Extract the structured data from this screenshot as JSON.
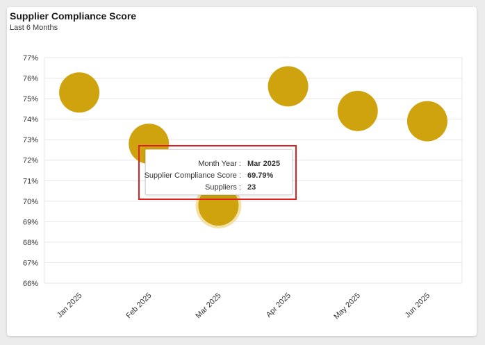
{
  "header": {
    "title": "Supplier Compliance Score",
    "subtitle": "Last 6 Months"
  },
  "colors": {
    "bubble": "#CFA30E",
    "bubble_highlight": "#F3E2A8",
    "grid": "#e6e6e6",
    "tooltip_outline": "#E02020"
  },
  "chart_data": {
    "type": "scatter",
    "title": "Supplier Compliance Score",
    "subtitle": "Last 6 Months",
    "xlabel": "",
    "ylabel": "",
    "categories": [
      "Jan 2025",
      "Feb 2025",
      "Mar 2025",
      "Apr 2025",
      "May 2025",
      "Jun 2025"
    ],
    "values": [
      75.3,
      72.8,
      69.79,
      75.6,
      74.4,
      73.9
    ],
    "ylim": [
      66,
      77
    ],
    "yticks": [
      "66%",
      "67%",
      "68%",
      "69%",
      "70%",
      "71%",
      "72%",
      "73%",
      "74%",
      "75%",
      "76%",
      "77%"
    ],
    "grid": true,
    "legend": "none",
    "highlighted_category": "Mar 2025"
  },
  "tooltip": {
    "rows": [
      {
        "label": "Month Year :",
        "value": "Mar 2025"
      },
      {
        "label": "Supplier Compliance Score :",
        "value": "69.79%"
      },
      {
        "label": "Suppliers :",
        "value": "23"
      }
    ]
  }
}
